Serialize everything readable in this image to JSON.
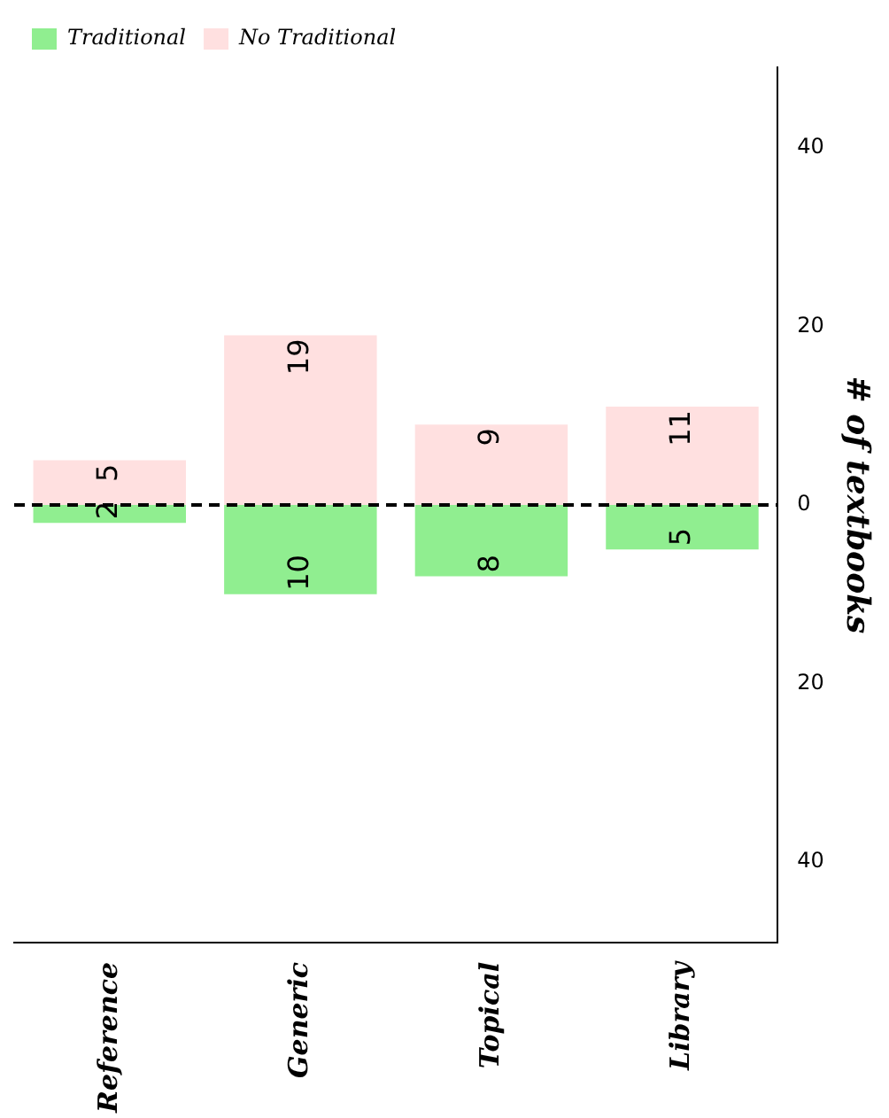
{
  "chart_data": {
    "type": "bar",
    "ylabel": "# of textbooks",
    "categories": [
      "Reference",
      "Generic",
      "Topical",
      "Library"
    ],
    "series": [
      {
        "name": "Traditional",
        "color": "#90ee90",
        "values": [
          2,
          10,
          8,
          5
        ],
        "base": [
          -2,
          -10,
          -8,
          -5
        ],
        "value_labels": [
          "2",
          "10",
          "8",
          "5"
        ]
      },
      {
        "name": "No Traditional",
        "color": "#ffe0e0",
        "values": [
          5,
          19,
          9,
          11
        ],
        "value_labels": [
          "5",
          "19",
          "9",
          "11"
        ]
      }
    ],
    "ylim": [
      -49,
      49
    ],
    "yticks": [
      {
        "value": -40,
        "label": "40"
      },
      {
        "value": -20,
        "label": "20"
      },
      0,
      20,
      40
    ],
    "ref_lines": [
      {
        "axis": "y",
        "value": 0,
        "line_style": "dashed",
        "color": "#000000"
      }
    ],
    "grid": false,
    "legend": "top left"
  }
}
